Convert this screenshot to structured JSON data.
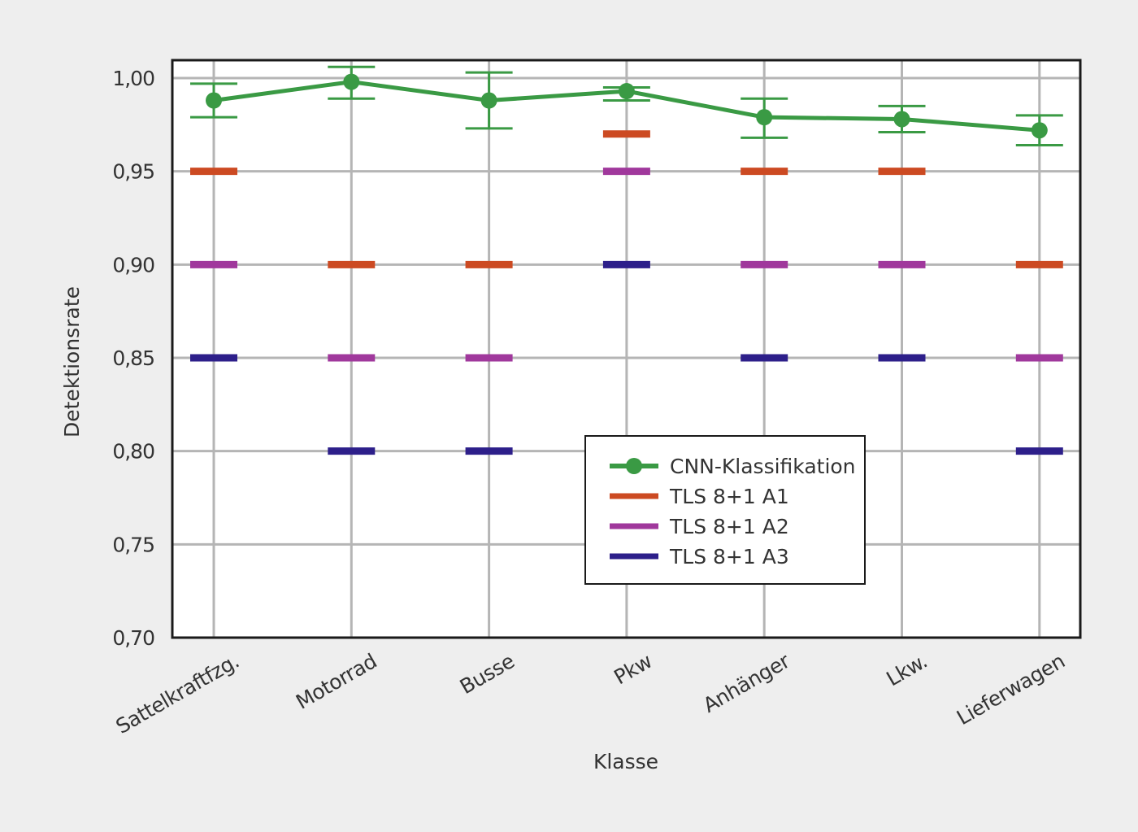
{
  "chart_data": {
    "type": "line",
    "title": "",
    "xlabel": "Klasse",
    "ylabel": "Detektionsrate",
    "ylim": [
      0.7,
      1.0
    ],
    "grid": true,
    "legend_position": "lower-center",
    "categories": [
      "Sattelkraftfzg.",
      "Motorrad",
      "Busse",
      "Pkw",
      "Anhänger",
      "Lkw.",
      "Lieferwagen"
    ],
    "y_ticks": [
      {
        "value": 1.0,
        "label": "1,00"
      },
      {
        "value": 0.95,
        "label": "0,95"
      },
      {
        "value": 0.9,
        "label": "0,90"
      },
      {
        "value": 0.85,
        "label": "0,85"
      },
      {
        "value": 0.8,
        "label": "0,80"
      },
      {
        "value": 0.75,
        "label": "0,75"
      },
      {
        "value": 0.7,
        "label": "0,70"
      }
    ],
    "series": [
      {
        "name": "CNN-Klassifikation",
        "color": "#3a9a44",
        "style": "line-with-errorbars",
        "values": [
          0.988,
          0.998,
          0.988,
          0.993,
          0.979,
          0.978,
          0.972
        ],
        "error_low": [
          0.979,
          0.989,
          0.973,
          0.988,
          0.968,
          0.971,
          0.964
        ],
        "error_high": [
          0.997,
          1.006,
          1.003,
          0.995,
          0.989,
          0.985,
          0.98
        ]
      },
      {
        "name": "TLS 8+1 A1",
        "color": "#cc4a22",
        "style": "marker",
        "values": [
          0.95,
          0.9,
          0.9,
          0.97,
          0.95,
          0.95,
          0.9
        ]
      },
      {
        "name": "TLS 8+1 A2",
        "color": "#a0389c",
        "style": "marker",
        "values": [
          0.9,
          0.85,
          0.85,
          0.95,
          0.9,
          0.9,
          0.85
        ]
      },
      {
        "name": "TLS 8+1 A3",
        "color": "#2d1f8a",
        "style": "marker",
        "values": [
          0.85,
          0.8,
          0.8,
          0.9,
          0.85,
          0.85,
          0.8
        ]
      }
    ]
  }
}
